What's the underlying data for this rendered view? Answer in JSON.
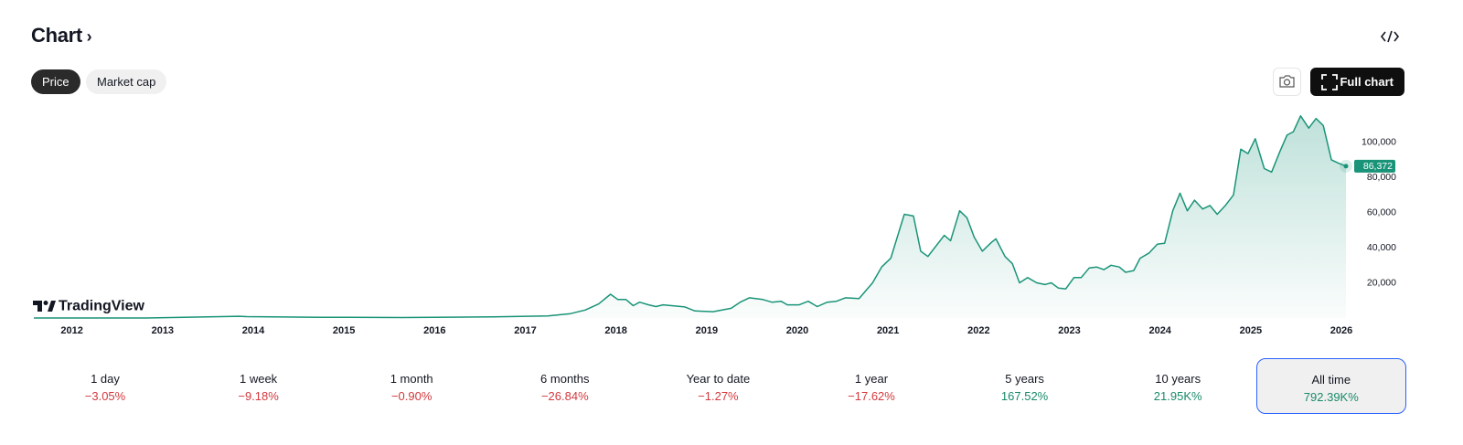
{
  "header": {
    "title": "Chart"
  },
  "tabs": [
    {
      "label": "Price",
      "selected": true
    },
    {
      "label": "Market cap",
      "selected": false
    }
  ],
  "full_chart_button": "Full chart",
  "watermark": "TradingView",
  "chart_data": {
    "type": "line",
    "x": [
      2011.58,
      2012.82,
      2013.84,
      2013.93,
      2014.73,
      2015.64,
      2016.65,
      2017.25,
      2017.5,
      2017.66,
      2017.81,
      2017.94,
      2018.02,
      2018.11,
      2018.19,
      2018.26,
      2018.36,
      2018.44,
      2018.52,
      2018.76,
      2018.87,
      2019.07,
      2019.27,
      2019.37,
      2019.47,
      2019.62,
      2019.72,
      2019.82,
      2019.89,
      2020.02,
      2020.12,
      2020.22,
      2020.33,
      2020.43,
      2020.53,
      2020.68,
      2020.83,
      2020.93,
      2021.03,
      2021.18,
      2021.28,
      2021.36,
      2021.44,
      2021.62,
      2021.69,
      2021.79,
      2021.87,
      2021.95,
      2022.04,
      2022.14,
      2022.19,
      2022.29,
      2022.37,
      2022.45,
      2022.54,
      2022.64,
      2022.73,
      2022.8,
      2022.88,
      2022.96,
      2023.05,
      2023.13,
      2023.22,
      2023.3,
      2023.38,
      2023.46,
      2023.55,
      2023.62,
      2023.71,
      2023.78,
      2023.88,
      2023.97,
      2024.05,
      2024.14,
      2024.22,
      2024.3,
      2024.38,
      2024.47,
      2024.55,
      2024.63,
      2024.72,
      2024.81,
      2024.89,
      2024.97,
      2025.05,
      2025.15,
      2025.23,
      2025.32,
      2025.4,
      2025.47,
      2025.55,
      2025.64,
      2025.72,
      2025.8,
      2025.89,
      2025.97,
      2026.05
    ],
    "series": [
      {
        "name": "Price",
        "color": "#1a9478",
        "values": [
          5,
          12,
          1000,
          800,
          400,
          250,
          650,
          1200,
          2500,
          4500,
          8000,
          13500,
          10500,
          10500,
          7000,
          9000,
          7500,
          6500,
          7500,
          6300,
          4000,
          3600,
          5500,
          9000,
          11500,
          10500,
          9000,
          9500,
          7500,
          7500,
          9500,
          6500,
          9000,
          9500,
          11500,
          11000,
          20000,
          29000,
          34000,
          59000,
          58000,
          38000,
          35000,
          47000,
          44000,
          61000,
          57000,
          46000,
          38000,
          43000,
          45000,
          35000,
          31000,
          20000,
          23000,
          20000,
          19000,
          20000,
          17000,
          16600,
          23000,
          23000,
          28500,
          29000,
          27500,
          30000,
          29000,
          26000,
          27000,
          34000,
          37000,
          42000,
          42500,
          61000,
          71000,
          61000,
          67000,
          62000,
          64000,
          59000,
          64000,
          70000,
          96000,
          93500,
          102000,
          85000,
          83000,
          94500,
          104000,
          106000,
          115000,
          108000,
          113500,
          109500,
          90000,
          88000,
          86372
        ]
      }
    ],
    "last_price_label": "86,372",
    "xlim": [
      2011.58,
      2026.05
    ],
    "xticks": [
      2012,
      2013,
      2014,
      2015,
      2016,
      2017,
      2018,
      2019,
      2020,
      2021,
      2022,
      2023,
      2024,
      2025,
      2026
    ],
    "ylim": [
      0,
      118000
    ],
    "yticks": [
      {
        "value": 20000,
        "label": "20,000"
      },
      {
        "value": 40000,
        "label": "40,000"
      },
      {
        "value": 60000,
        "label": "60,000"
      },
      {
        "value": 80000,
        "label": "80,000"
      },
      {
        "value": 100000,
        "label": "100,000"
      }
    ],
    "grid": false
  },
  "periods": [
    {
      "label": "1 day",
      "change": "−3.05%",
      "color": "#d33a3f",
      "selected": false
    },
    {
      "label": "1 week",
      "change": "−9.18%",
      "color": "#d33a3f",
      "selected": false
    },
    {
      "label": "1 month",
      "change": "−0.90%",
      "color": "#d33a3f",
      "selected": false
    },
    {
      "label": "6 months",
      "change": "−26.84%",
      "color": "#d33a3f",
      "selected": false
    },
    {
      "label": "Year to date",
      "change": "−1.27%",
      "color": "#d33a3f",
      "selected": false
    },
    {
      "label": "1 year",
      "change": "−17.62%",
      "color": "#d33a3f",
      "selected": false
    },
    {
      "label": "5 years",
      "change": "167.52%",
      "color": "#1a8a6a",
      "selected": false
    },
    {
      "label": "10 years",
      "change": "21.95K%",
      "color": "#1a8a6a",
      "selected": false
    },
    {
      "label": "All time",
      "change": "792.39K%",
      "color": "#1a8a6a",
      "selected": true
    }
  ]
}
